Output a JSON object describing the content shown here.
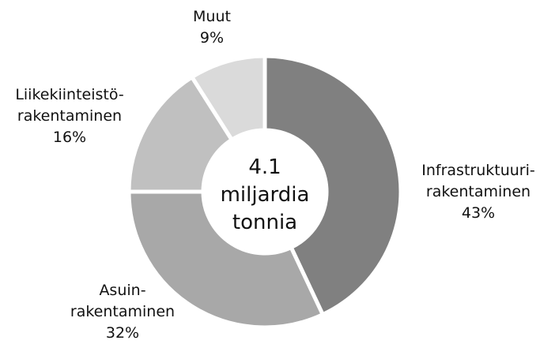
{
  "chart_data": {
    "type": "donut",
    "center_label": "4.1\nmiljardia\ntonnia",
    "categories": [
      "Infrastruktuuri-\nrakentaminen",
      "Asuin-\nrakentaminen",
      "Liikekiinteistö-\nrakentaminen",
      "Muut"
    ],
    "values": [
      43,
      32,
      16,
      9
    ],
    "value_labels": [
      "43%",
      "32%",
      "16%",
      "9%"
    ],
    "colors": [
      "#808080",
      "#a8a8a8",
      "#c0c0c0",
      "#dadada"
    ]
  }
}
